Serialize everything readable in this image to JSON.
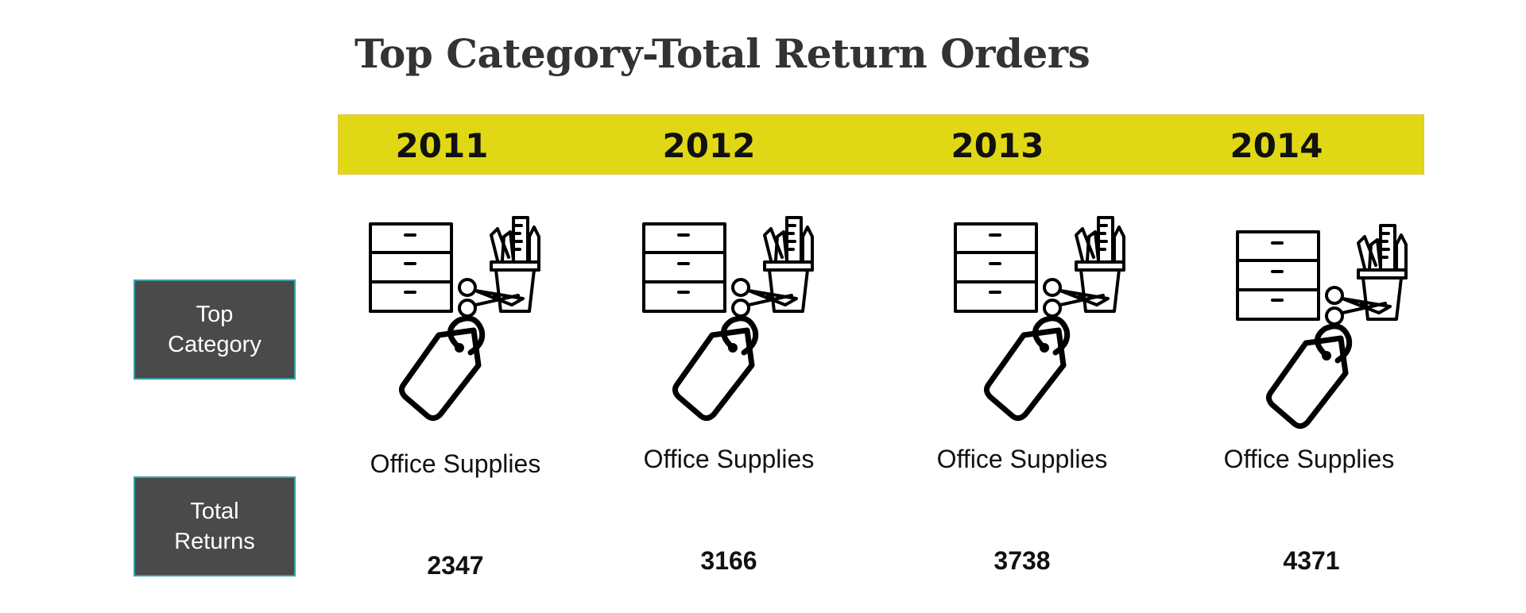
{
  "title": "Top Category-Total Return Orders",
  "colors": {
    "band": "#e0d814",
    "label_bg": "#4a4a4a",
    "label_border": "#3aa0a8"
  },
  "side_labels": {
    "top_category": [
      "Top",
      "Category"
    ],
    "total_returns": [
      "Total",
      "Returns"
    ]
  },
  "columns": [
    {
      "year": "2011",
      "category": "Office Supplies",
      "total": "2347",
      "icon": "office-supplies-icon"
    },
    {
      "year": "2012",
      "category": "Office Supplies",
      "total": "3166",
      "icon": "office-supplies-icon"
    },
    {
      "year": "2013",
      "category": "Office Supplies",
      "total": "3738",
      "icon": "office-supplies-icon"
    },
    {
      "year": "2014",
      "category": "Office Supplies",
      "total": "4371",
      "icon": "office-supplies-icon"
    }
  ]
}
